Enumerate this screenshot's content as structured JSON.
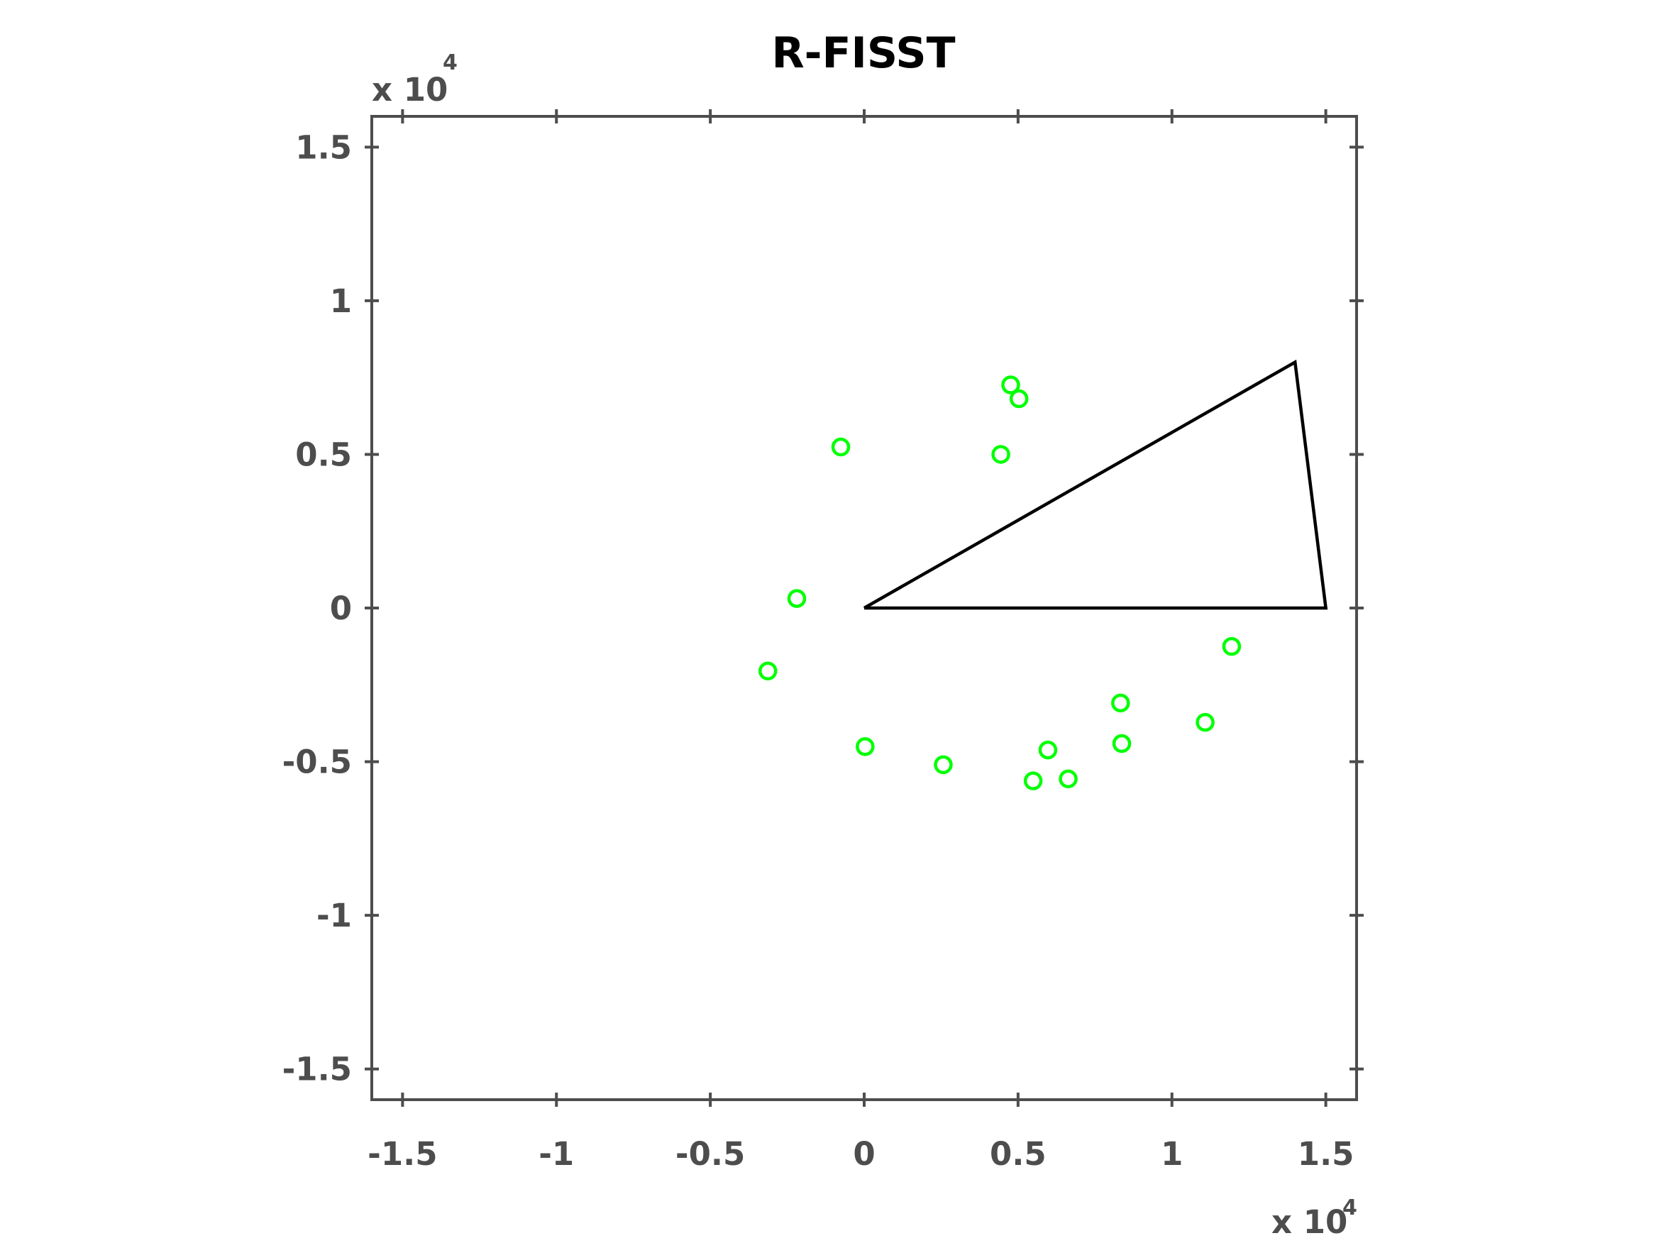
{
  "chart_data": {
    "type": "scatter",
    "title": "R-FISST",
    "x_multiplier": {
      "base": "x 10",
      "exponent": "4"
    },
    "y_multiplier": {
      "base": "x 10",
      "exponent": "4"
    },
    "xlim": [
      -1.6,
      1.6
    ],
    "ylim": [
      -1.6,
      1.6
    ],
    "xticks": [
      -1.5,
      -1,
      -0.5,
      0,
      0.5,
      1,
      1.5
    ],
    "yticks": [
      -1.5,
      -1,
      -0.5,
      0,
      0.5,
      1,
      1.5
    ],
    "grid": false,
    "series": [
      {
        "type": "scatter",
        "marker": "circle",
        "color": "#00ff00",
        "x": [
          -0.076,
          0.476,
          0.503,
          0.444,
          -0.219,
          -0.313,
          0.003,
          0.257,
          0.549,
          0.597,
          0.663,
          0.833,
          0.837,
          1.108,
          1.194
        ],
        "y": [
          0.524,
          0.726,
          0.681,
          0.5,
          0.031,
          -0.205,
          -0.451,
          -0.51,
          -0.5625,
          -0.462,
          -0.556,
          -0.309,
          -0.441,
          -0.372,
          -0.125
        ]
      },
      {
        "type": "line",
        "color": "#000000",
        "x": [
          0,
          1.4,
          1.5,
          0
        ],
        "y": [
          0,
          0.8,
          0,
          0
        ]
      }
    ]
  }
}
